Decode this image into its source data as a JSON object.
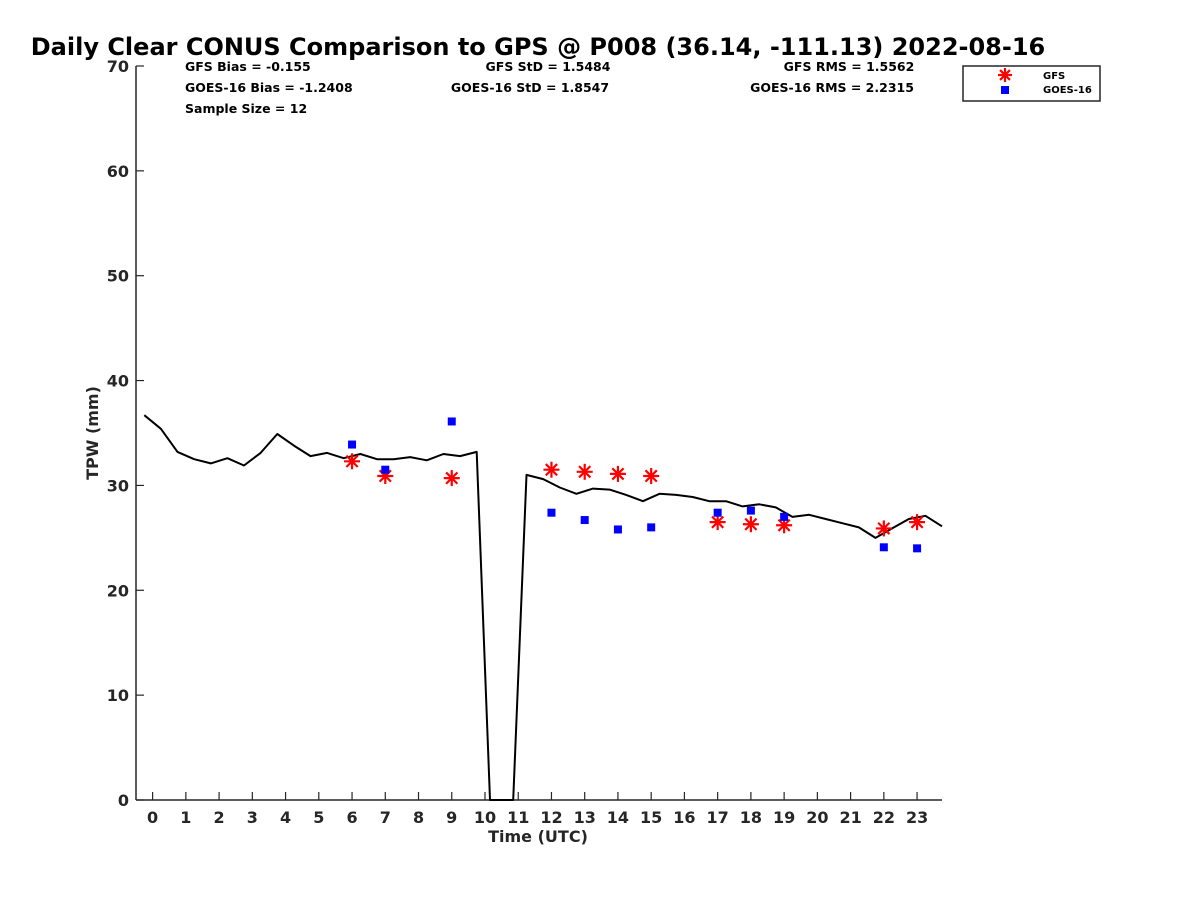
{
  "chart_data": {
    "type": "scatter",
    "title": "Daily Clear CONUS Comparison to GPS @ P008 (36.14, -111.13) 2022-08-16",
    "xlabel": "Time (UTC)",
    "ylabel": "TPW (mm)",
    "xlim": [
      -0.5,
      23.75
    ],
    "ylim": [
      0,
      70
    ],
    "xticks": [
      "0",
      "1",
      "2",
      "3",
      "4",
      "5",
      "6",
      "7",
      "8",
      "9",
      "10",
      "11",
      "12",
      "13",
      "14",
      "15",
      "16",
      "17",
      "18",
      "19",
      "20",
      "21",
      "22",
      "23"
    ],
    "yticks": [
      "0",
      "10",
      "20",
      "30",
      "40",
      "50",
      "60",
      "70"
    ],
    "grid": false,
    "legend_position": "top-right",
    "stats": {
      "gfs_bias": "GFS Bias = -0.155",
      "goes_bias": "GOES-16 Bias = -1.2408",
      "sample_size": "Sample Size = 12",
      "gfs_std": "GFS StD = 1.5484",
      "goes_std": "GOES-16 StD = 1.8547",
      "gfs_rms": "GFS RMS = 1.5562",
      "goes_rms": "GOES-16 RMS = 2.2315"
    },
    "gps_line": {
      "color": "#000000",
      "x": [
        -0.25,
        0.25,
        0.75,
        1.25,
        1.75,
        2.25,
        2.75,
        3.25,
        3.75,
        4.25,
        4.75,
        5.25,
        5.75,
        6.25,
        6.75,
        7.25,
        7.75,
        8.25,
        8.75,
        9.25,
        9.75,
        10.15,
        10.85,
        11.25,
        11.75,
        12.25,
        12.75,
        13.25,
        13.75,
        14.25,
        14.75,
        15.25,
        15.75,
        16.25,
        16.75,
        17.25,
        17.75,
        18.25,
        18.75,
        19.25,
        19.75,
        20.25,
        20.75,
        21.25,
        21.75,
        22.25,
        22.75,
        23.25,
        23.75
      ],
      "y": [
        36.7,
        35.4,
        33.2,
        32.5,
        32.1,
        32.6,
        31.9,
        33.1,
        34.9,
        33.8,
        32.8,
        33.1,
        32.6,
        33.0,
        32.5,
        32.5,
        32.7,
        32.4,
        33.0,
        32.8,
        33.2,
        0,
        0,
        31.0,
        30.6,
        29.8,
        29.2,
        29.7,
        29.6,
        29.1,
        28.5,
        29.2,
        29.1,
        28.9,
        28.5,
        28.5,
        28.0,
        28.2,
        27.9,
        27.0,
        27.2,
        26.8,
        26.4,
        26.0,
        25.0,
        25.9,
        26.8,
        27.1,
        26.1
      ]
    },
    "series": [
      {
        "name": "GFS",
        "marker": "asterisk",
        "color": "#ff0000",
        "x": [
          6,
          7,
          9,
          12,
          13,
          14,
          15,
          17,
          18,
          19,
          22,
          23
        ],
        "y": [
          32.3,
          30.9,
          30.7,
          31.5,
          31.3,
          31.1,
          30.9,
          26.5,
          26.3,
          26.2,
          25.9,
          26.5
        ]
      },
      {
        "name": "GOES-16",
        "marker": "square",
        "color": "#0000ff",
        "x": [
          6,
          7,
          9,
          12,
          13,
          14,
          15,
          17,
          18,
          19,
          22,
          23
        ],
        "y": [
          33.9,
          31.5,
          36.1,
          27.4,
          26.7,
          25.8,
          26.0,
          27.4,
          27.6,
          27.0,
          24.1,
          24.0
        ]
      }
    ]
  }
}
